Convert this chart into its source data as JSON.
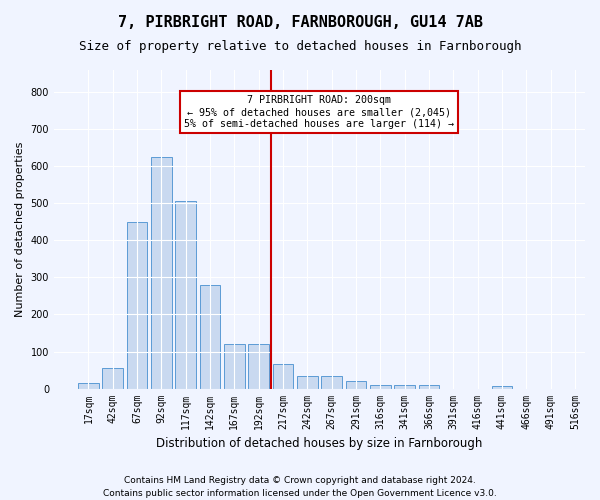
{
  "title": "7, PIRBRIGHT ROAD, FARNBOROUGH, GU14 7AB",
  "subtitle": "Size of property relative to detached houses in Farnborough",
  "xlabel": "Distribution of detached houses by size in Farnborough",
  "ylabel": "Number of detached properties",
  "footnote1": "Contains HM Land Registry data © Crown copyright and database right 2024.",
  "footnote2": "Contains public sector information licensed under the Open Government Licence v3.0.",
  "bin_labels": [
    "17sqm",
    "42sqm",
    "67sqm",
    "92sqm",
    "117sqm",
    "142sqm",
    "167sqm",
    "192sqm",
    "217sqm",
    "242sqm",
    "267sqm",
    "291sqm",
    "316sqm",
    "341sqm",
    "366sqm",
    "391sqm",
    "416sqm",
    "441sqm",
    "466sqm",
    "491sqm",
    "516sqm"
  ],
  "bar_values": [
    15,
    55,
    450,
    625,
    505,
    280,
    120,
    120,
    65,
    35,
    35,
    20,
    10,
    10,
    10,
    0,
    0,
    8,
    0,
    0
  ],
  "bar_color": "#c9d9f0",
  "bar_edge_color": "#5b9bd5",
  "vline_x": 7.5,
  "vline_color": "#cc0000",
  "annotation_text": "7 PIRBRIGHT ROAD: 200sqm\n← 95% of detached houses are smaller (2,045)\n5% of semi-detached houses are larger (114) →",
  "annotation_box_color": "#cc0000",
  "ylim": [
    0,
    860
  ],
  "yticks": [
    0,
    100,
    200,
    300,
    400,
    500,
    600,
    700,
    800
  ],
  "background_color": "#f0f4ff",
  "grid_color": "#ffffff",
  "title_fontsize": 11,
  "subtitle_fontsize": 9,
  "axis_label_fontsize": 8,
  "tick_fontsize": 7,
  "footnote_fontsize": 6.5
}
